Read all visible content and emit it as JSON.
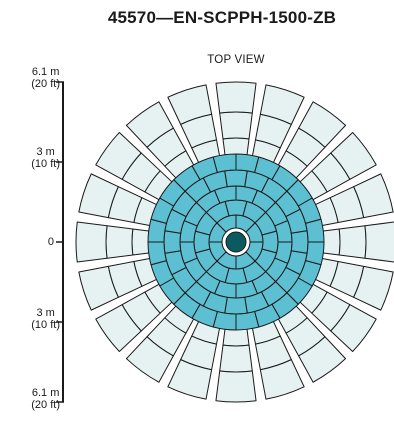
{
  "title": "45570—EN-SCPPH-1500-ZB",
  "view_label": "TOP VIEW",
  "scale": {
    "ticks": [
      {
        "value": "6.1 m",
        "sub": "(20 ft)"
      },
      {
        "value": "3 m",
        "sub": "(10 ft)"
      },
      {
        "value": "0",
        "sub": ""
      },
      {
        "value": "3 m",
        "sub": "(10 ft)"
      },
      {
        "value": "6.1 m",
        "sub": "(20 ft)"
      }
    ]
  },
  "colors": {
    "inner_zone": "#5cc0d2",
    "outer_zone": "#e6f1f1",
    "outline": "#1a1a1a",
    "sensor": "#0b5a60"
  }
}
